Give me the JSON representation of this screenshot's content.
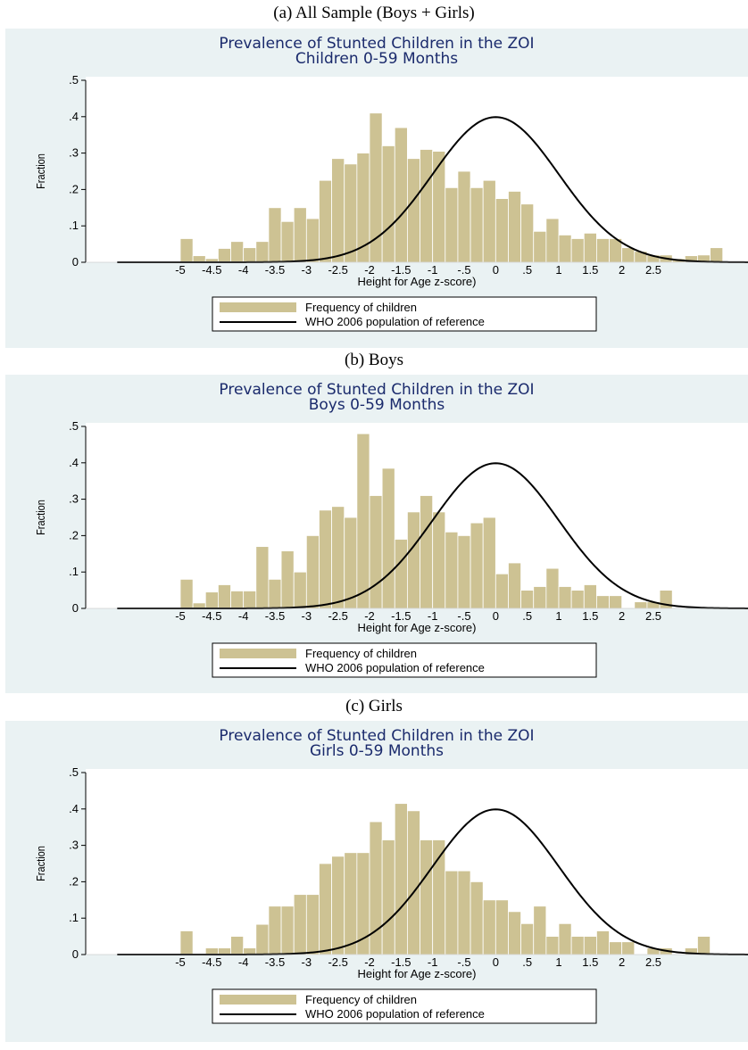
{
  "colors": {
    "bar_fill": "#cdc293",
    "bar_stroke": "#ffffff",
    "panel_bg": "#eaf2f3",
    "plot_bg": "#ffffff",
    "title_color": "#1a2a6c",
    "curve": "#000000"
  },
  "captions": [
    "(a)   All Sample (Boys + Girls)",
    "(b)   Boys",
    "(c)   Girls"
  ],
  "chart_data": [
    {
      "type": "bar",
      "title": "Prevalence of Stunted Children in the ZOI",
      "subtitle": "Children 0-59 Months",
      "xlabel": "Height for Age z-score)",
      "ylabel": "Fraction",
      "xticks": [
        "-5",
        "-4.5",
        "-4",
        "-3.5",
        "-3",
        "-2.5",
        "-2",
        "-1.5",
        "-1",
        "-.5",
        "0",
        ".5",
        "1",
        "1.5",
        "2",
        "2.5"
      ],
      "yticks": [
        "0",
        ".1",
        ".2",
        ".3",
        ".4",
        ".5"
      ],
      "xlim": [
        -6.5,
        4
      ],
      "ylim": [
        0,
        0.5
      ],
      "bin_start": -5,
      "bin_width": 0.2,
      "values": [
        0.065,
        0.018,
        0.01,
        0.038,
        0.057,
        0.04,
        0.057,
        0.15,
        0.112,
        0.15,
        0.12,
        0.225,
        0.285,
        0.27,
        0.3,
        0.41,
        0.32,
        0.37,
        0.285,
        0.31,
        0.305,
        0.205,
        0.25,
        0.205,
        0.225,
        0.175,
        0.195,
        0.16,
        0.085,
        0.12,
        0.075,
        0.065,
        0.08,
        0.065,
        0.065,
        0.04,
        0.03,
        0.02,
        0.02,
        0.01,
        0.018,
        0.02,
        0.04
      ],
      "series": [
        {
          "name": "Frequency of children",
          "kind": "bar"
        },
        {
          "name": "WHO 2006 population of reference",
          "kind": "line",
          "formula": "standard normal density"
        }
      ],
      "legend_position": "bottom-center"
    },
    {
      "type": "bar",
      "title": "Prevalence of Stunted Children in the ZOI",
      "subtitle": "Boys 0-59 Months",
      "xlabel": "Height for Age z-score)",
      "ylabel": "Fraction",
      "xticks": [
        "-5",
        "-4.5",
        "-4",
        "-3.5",
        "-3",
        "-2.5",
        "-2",
        "-1.5",
        "-1",
        "-.5",
        "0",
        ".5",
        "1",
        "1.5",
        "2",
        "2.5"
      ],
      "yticks": [
        "0",
        ".1",
        ".2",
        ".3",
        ".4",
        ".5"
      ],
      "xlim": [
        -6.5,
        4
      ],
      "ylim": [
        0,
        0.5
      ],
      "bin_start": -5,
      "bin_width": 0.2,
      "values": [
        0.08,
        0.015,
        0.045,
        0.065,
        0.048,
        0.048,
        0.17,
        0.08,
        0.158,
        0.1,
        0.2,
        0.27,
        0.28,
        0.25,
        0.48,
        0.31,
        0.385,
        0.19,
        0.265,
        0.31,
        0.265,
        0.21,
        0.2,
        0.235,
        0.25,
        0.095,
        0.125,
        0.05,
        0.06,
        0.11,
        0.06,
        0.05,
        0.065,
        0.035,
        0.035,
        0.0,
        0.018,
        0.018,
        0.05
      ],
      "series": [
        {
          "name": "Frequency of children",
          "kind": "bar"
        },
        {
          "name": "WHO 2006 population of reference",
          "kind": "line",
          "formula": "standard normal density"
        }
      ],
      "legend_position": "bottom-center"
    },
    {
      "type": "bar",
      "title": "Prevalence of Stunted Children in the ZOI",
      "subtitle": "Girls 0-59 Months",
      "xlabel": "Height for Age z-score)",
      "ylabel": "Fraction",
      "xticks": [
        "-5",
        "-4.5",
        "-4",
        "-3.5",
        "-3",
        "-2.5",
        "-2",
        "-1.5",
        "-1",
        "-.5",
        "0",
        ".5",
        "1",
        "1.5",
        "2",
        "2.5"
      ],
      "yticks": [
        "0",
        ".1",
        ".2",
        ".3",
        ".4",
        ".5"
      ],
      "xlim": [
        -6.5,
        4
      ],
      "ylim": [
        0,
        0.5
      ],
      "bin_start": -5,
      "bin_width": 0.2,
      "values": [
        0.065,
        0.0,
        0.018,
        0.018,
        0.05,
        0.018,
        0.083,
        0.133,
        0.133,
        0.165,
        0.165,
        0.25,
        0.27,
        0.28,
        0.28,
        0.365,
        0.315,
        0.415,
        0.395,
        0.315,
        0.315,
        0.23,
        0.23,
        0.2,
        0.15,
        0.15,
        0.118,
        0.085,
        0.133,
        0.05,
        0.085,
        0.05,
        0.05,
        0.065,
        0.035,
        0.035,
        0.0,
        0.018,
        0.018,
        0.0,
        0.018,
        0.05
      ],
      "series": [
        {
          "name": "Frequency of children",
          "kind": "bar"
        },
        {
          "name": "WHO 2006 population of reference",
          "kind": "line",
          "formula": "standard normal density"
        }
      ],
      "legend_position": "bottom-center"
    }
  ]
}
